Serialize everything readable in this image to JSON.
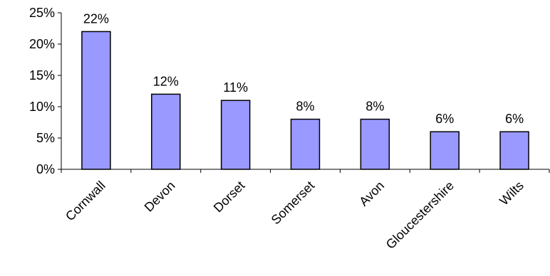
{
  "chart_data": {
    "type": "bar",
    "categories": [
      "Cornwall",
      "Devon",
      "Dorset",
      "Somerset",
      "Avon",
      "Gloucestershire",
      "Wilts"
    ],
    "values": [
      22,
      12,
      11,
      8,
      8,
      6,
      6
    ],
    "data_labels": [
      "22%",
      "12%",
      "11%",
      "8%",
      "8%",
      "6%",
      "6%"
    ],
    "yticks": [
      0,
      5,
      10,
      15,
      20,
      25
    ],
    "ytick_labels": [
      "0%",
      "5%",
      "10%",
      "15%",
      "20%",
      "25%"
    ],
    "ylim": [
      0,
      25
    ],
    "title": "",
    "xlabel": "",
    "ylabel": "",
    "grid": false,
    "legend": "none",
    "colors": {
      "bar_fill": "#9999ff",
      "bar_stroke": "#000000",
      "axis": "#000000"
    }
  }
}
